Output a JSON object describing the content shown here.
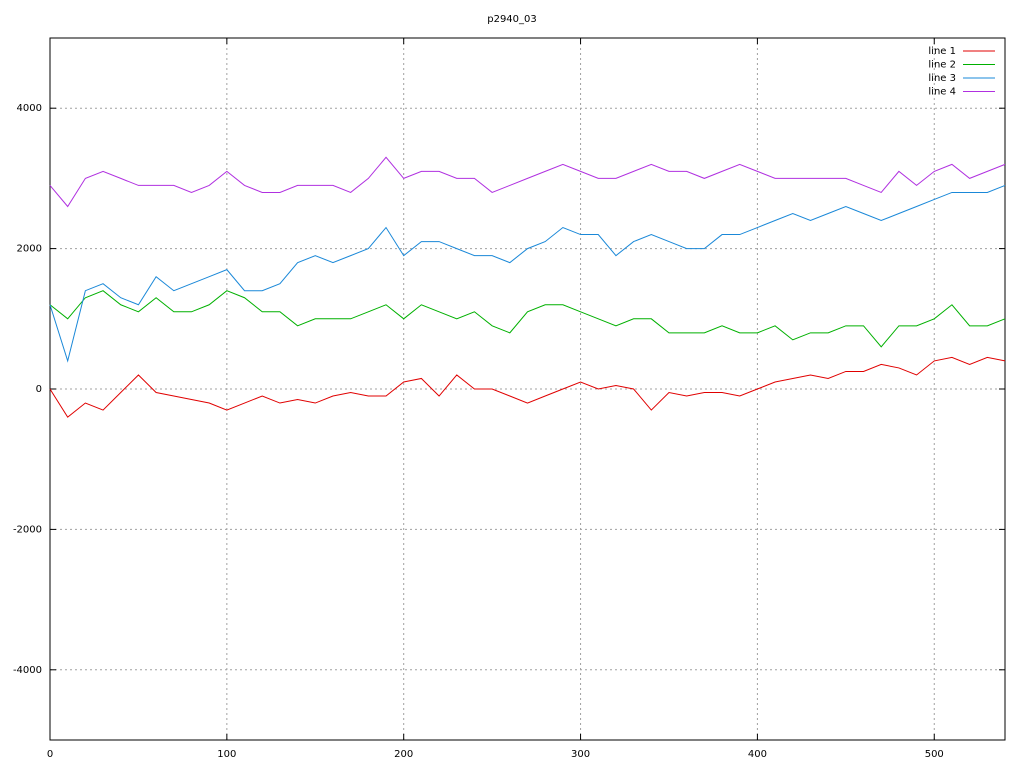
{
  "chart_data": {
    "type": "line",
    "title": "p2940_03",
    "x": [
      0,
      10,
      20,
      30,
      40,
      50,
      60,
      70,
      80,
      90,
      100,
      110,
      120,
      130,
      140,
      150,
      160,
      170,
      180,
      190,
      200,
      210,
      220,
      230,
      240,
      250,
      260,
      270,
      280,
      290,
      300,
      310,
      320,
      330,
      340,
      350,
      360,
      370,
      380,
      390,
      400,
      410,
      420,
      430,
      440,
      450,
      460,
      470,
      480,
      490,
      500,
      510,
      520,
      530,
      540
    ],
    "series": [
      {
        "name": "line 1",
        "color": "#e00000",
        "values": [
          0,
          -400,
          -200,
          -300,
          -50,
          200,
          -50,
          -100,
          -150,
          -200,
          -300,
          -200,
          -100,
          -200,
          -150,
          -200,
          -100,
          -50,
          -100,
          -100,
          100,
          150,
          -100,
          200,
          0,
          0,
          -100,
          -200,
          -100,
          0,
          100,
          0,
          50,
          0,
          -300,
          -50,
          -100,
          -50,
          -50,
          -100,
          0,
          100,
          150,
          200,
          150,
          250,
          250,
          350,
          300,
          200,
          400,
          450,
          350,
          450,
          400
        ]
      },
      {
        "name": "line 2",
        "color": "#00b000",
        "values": [
          1200,
          1000,
          1300,
          1400,
          1200,
          1100,
          1300,
          1100,
          1100,
          1200,
          1400,
          1300,
          1100,
          1100,
          900,
          1000,
          1000,
          1000,
          1100,
          1200,
          1000,
          1200,
          1100,
          1000,
          1100,
          900,
          800,
          1100,
          1200,
          1200,
          1100,
          1000,
          900,
          1000,
          1000,
          800,
          800,
          800,
          900,
          800,
          800,
          900,
          700,
          800,
          800,
          900,
          900,
          600,
          900,
          900,
          1000,
          1200,
          900,
          900,
          1000
        ]
      },
      {
        "name": "line 3",
        "color": "#1a88d8",
        "values": [
          1200,
          400,
          1400,
          1500,
          1300,
          1200,
          1600,
          1400,
          1500,
          1600,
          1700,
          1400,
          1400,
          1500,
          1800,
          1900,
          1800,
          1900,
          2000,
          2300,
          1900,
          2100,
          2100,
          2000,
          1900,
          1900,
          1800,
          2000,
          2100,
          2300,
          2200,
          2200,
          1900,
          2100,
          2200,
          2100,
          2000,
          2000,
          2200,
          2200,
          2300,
          2400,
          2500,
          2400,
          2500,
          2600,
          2500,
          2400,
          2500,
          2600,
          2700,
          2800,
          2800,
          2800,
          2900
        ]
      },
      {
        "name": "line 4",
        "color": "#b030e0",
        "values": [
          2900,
          2600,
          3000,
          3100,
          3000,
          2900,
          2900,
          2900,
          2800,
          2900,
          3100,
          2900,
          2800,
          2800,
          2900,
          2900,
          2900,
          2800,
          3000,
          3300,
          3000,
          3100,
          3100,
          3000,
          3000,
          2800,
          2900,
          3000,
          3100,
          3200,
          3100,
          3000,
          3000,
          3100,
          3200,
          3100,
          3100,
          3000,
          3100,
          3200,
          3100,
          3000,
          3000,
          3000,
          3000,
          3000,
          2900,
          2800,
          3100,
          2900,
          3100,
          3200,
          3000,
          3100,
          3200
        ]
      }
    ],
    "xlim": [
      0,
      540
    ],
    "ylim": [
      -5000,
      5000
    ],
    "xticks": [
      0,
      100,
      200,
      300,
      400,
      500
    ],
    "yticks": [
      -4000,
      -2000,
      0,
      2000,
      4000
    ],
    "grid": true,
    "legend": "top-right"
  }
}
